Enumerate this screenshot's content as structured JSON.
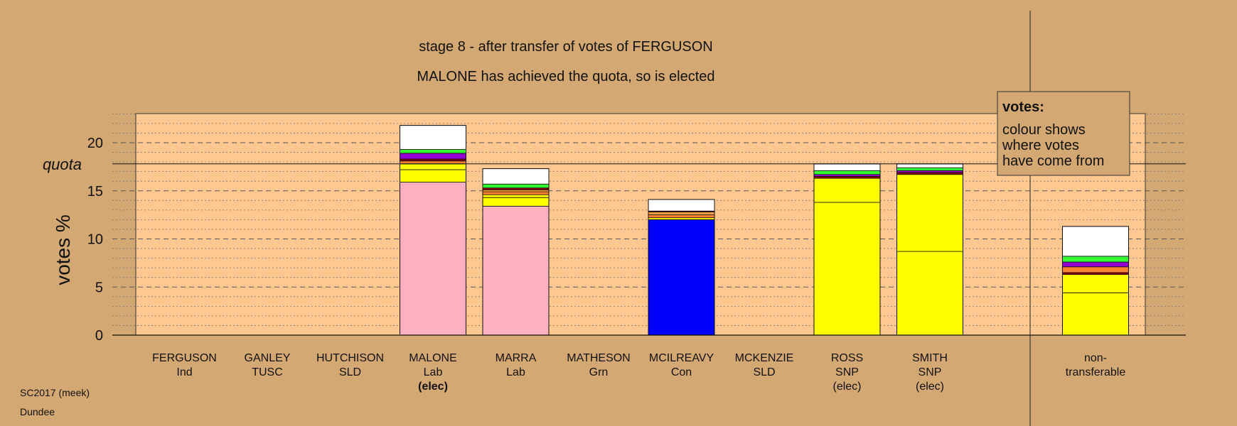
{
  "chart_data": {
    "type": "bar",
    "title": "stage 8 - after transfer of votes of FERGUSON",
    "subtitle": "MALONE has achieved the quota, so is elected",
    "ylabel": "votes %",
    "ylim": [
      0,
      23
    ],
    "yticks": [
      0,
      5,
      10,
      15,
      20
    ],
    "quota": {
      "label": "quota",
      "value": 17.8
    },
    "grid": true,
    "legend": {
      "position": "top-right",
      "title": "votes:",
      "lines": [
        "colour shows",
        "where votes",
        "have come from"
      ]
    },
    "colors": {
      "background": "#D4A873",
      "plot_area": "#FFC890",
      "Lab": "#FFB0C0",
      "SNP": "#FFFF00",
      "Con": "#0000FF",
      "Ind": "#FF8030",
      "TUSC": "#8B0000",
      "SLD": "#FFA040",
      "Grn": "#33FF33",
      "purple": "#9400D3",
      "other": "#FFFFFF"
    },
    "candidates": [
      {
        "name": "FERGUSON",
        "party": "Ind",
        "status": "",
        "segments": []
      },
      {
        "name": "GANLEY",
        "party": "TUSC",
        "status": "",
        "segments": []
      },
      {
        "name": "HUTCHISON",
        "party": "SLD",
        "status": "",
        "segments": []
      },
      {
        "name": "MALONE",
        "party": "Lab",
        "status": "(elec)",
        "status_bold": true,
        "segments": [
          {
            "value": 15.9,
            "color": "#FFB0C0"
          },
          {
            "value": 1.3,
            "color": "#FFFF00"
          },
          {
            "value": 0.6,
            "color": "#FFFF00"
          },
          {
            "value": 0.3,
            "color": "#FF8030"
          },
          {
            "value": 0.2,
            "color": "#8B0000"
          },
          {
            "value": 0.6,
            "color": "#9400D3"
          },
          {
            "value": 0.4,
            "color": "#33FF33"
          },
          {
            "value": 2.5,
            "color": "#FFFFFF"
          }
        ]
      },
      {
        "name": "MARRA",
        "party": "Lab",
        "status": "",
        "segments": [
          {
            "value": 13.4,
            "color": "#FFB0C0"
          },
          {
            "value": 0.9,
            "color": "#FFFF00"
          },
          {
            "value": 0.3,
            "color": "#FFFF00"
          },
          {
            "value": 0.3,
            "color": "#FF8030"
          },
          {
            "value": 0.2,
            "color": "#FFA040"
          },
          {
            "value": 0.2,
            "color": "#8B0000"
          },
          {
            "value": 0.4,
            "color": "#33FF33"
          },
          {
            "value": 1.6,
            "color": "#FFFFFF"
          }
        ]
      },
      {
        "name": "MATHESON",
        "party": "Grn",
        "status": "",
        "segments": []
      },
      {
        "name": "MCILREAVY",
        "party": "Con",
        "status": "",
        "segments": [
          {
            "value": 12.0,
            "color": "#0000FF"
          },
          {
            "value": 0.2,
            "color": "#FFFF00"
          },
          {
            "value": 0.3,
            "color": "#FF8030"
          },
          {
            "value": 0.3,
            "color": "#FFA040"
          },
          {
            "value": 0.1,
            "color": "#8B0000"
          },
          {
            "value": 1.2,
            "color": "#FFFFFF"
          }
        ]
      },
      {
        "name": "MCKENZIE",
        "party": "SLD",
        "status": "",
        "segments": []
      },
      {
        "name": "ROSS",
        "party": "SNP",
        "status": "(elec)",
        "segments": [
          {
            "value": 13.8,
            "color": "#FFFF00"
          },
          {
            "value": 2.5,
            "color": "#FFFF00"
          },
          {
            "value": 0.2,
            "color": "#8B0000"
          },
          {
            "value": 0.2,
            "color": "#9400D3"
          },
          {
            "value": 0.4,
            "color": "#33FF33"
          },
          {
            "value": 0.7,
            "color": "#FFFFFF"
          }
        ]
      },
      {
        "name": "SMITH",
        "party": "SNP",
        "status": "(elec)",
        "segments": [
          {
            "value": 8.7,
            "color": "#FFFF00"
          },
          {
            "value": 8.0,
            "color": "#FFFF00"
          },
          {
            "value": 0.2,
            "color": "#8B0000"
          },
          {
            "value": 0.2,
            "color": "#9400D3"
          },
          {
            "value": 0.3,
            "color": "#33FF33"
          },
          {
            "value": 0.4,
            "color": "#FFFFFF"
          }
        ]
      },
      {
        "name": "",
        "party": "",
        "status": "",
        "segments": []
      },
      {
        "name": "non-",
        "party": "transferable",
        "status": "",
        "segments": [
          {
            "value": 4.4,
            "color": "#FFFF00"
          },
          {
            "value": 1.9,
            "color": "#FFFF00"
          },
          {
            "value": 0.2,
            "color": "#8B0000"
          },
          {
            "value": 0.6,
            "color": "#FF8030"
          },
          {
            "value": 0.5,
            "color": "#9400D3"
          },
          {
            "value": 0.6,
            "color": "#33FF33"
          },
          {
            "value": 3.1,
            "color": "#FFFFFF"
          }
        ]
      }
    ]
  },
  "footer": {
    "line1": "SC2017 (meek)",
    "line2": "Dundee"
  }
}
